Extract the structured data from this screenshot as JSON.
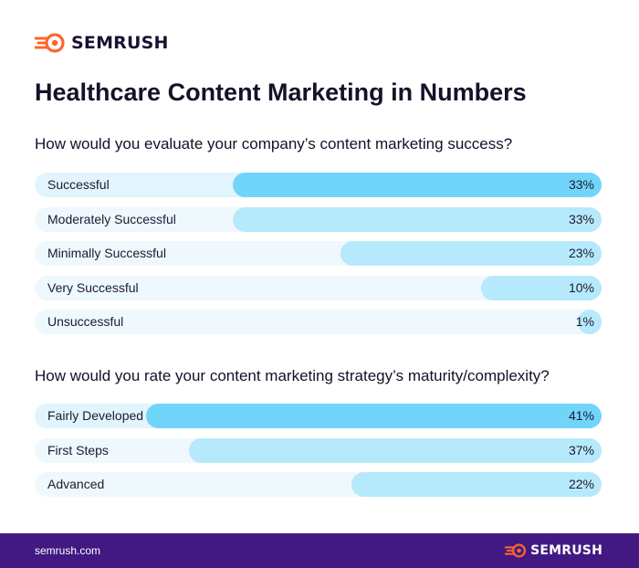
{
  "brand": {
    "name": "SEMRUSH",
    "accent": "#ff642d"
  },
  "title": "Healthcare Content Marketing in Numbers",
  "chart_data": [
    {
      "type": "bar",
      "orientation": "horizontal",
      "title": "How would you evaluate your company’s content marketing success?",
      "categories": [
        "Successful",
        "Moderately Successful",
        "Minimally Successful",
        "Very Successful",
        "Unsuccessful"
      ],
      "values": [
        33,
        33,
        23,
        10,
        1
      ],
      "value_labels": [
        "33%",
        "33%",
        "23%",
        "10%",
        "1%"
      ],
      "unit": "%",
      "xlim": [
        0,
        41
      ],
      "highlight_index": 0,
      "colors": {
        "bar": "#b6e9fb",
        "bar_highlight": "#71d5fa",
        "track": "#eef8fd"
      }
    },
    {
      "type": "bar",
      "orientation": "horizontal",
      "title": "How would you rate your content marketing strategy’s maturity/complexity?",
      "categories": [
        "Fairly Developed",
        "First Steps",
        "Advanced"
      ],
      "values": [
        41,
        37,
        22
      ],
      "value_labels": [
        "41%",
        "37%",
        "22%"
      ],
      "unit": "%",
      "xlim": [
        0,
        41
      ],
      "highlight_index": 0,
      "colors": {
        "bar": "#b6e9fb",
        "bar_highlight": "#71d5fa",
        "track": "#eef8fd"
      }
    }
  ],
  "footer": {
    "url": "semrush.com",
    "brand": "SEMRUSH",
    "background": "#421983"
  }
}
